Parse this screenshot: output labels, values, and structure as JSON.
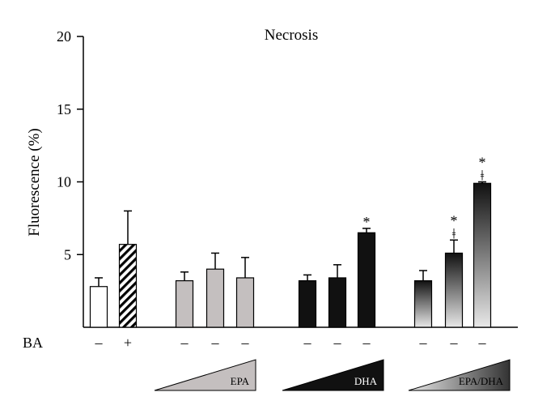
{
  "chart_data": {
    "type": "bar",
    "title": "Necrosis",
    "ylabel": "Fluorescence (%)",
    "xlabel": "",
    "ylim": [
      0,
      20
    ],
    "yticks": [
      "5",
      "10",
      "15",
      "20"
    ],
    "row_label": "BA",
    "bars": [
      {
        "value": 2.8,
        "error": 0.6,
        "ba": "–",
        "style": "white",
        "marks": []
      },
      {
        "value": 5.7,
        "error": 2.3,
        "ba": "+",
        "style": "hatched",
        "marks": []
      },
      {
        "value": 3.2,
        "error": 0.6,
        "ba": "–",
        "style": "gray",
        "marks": []
      },
      {
        "value": 4.0,
        "error": 1.1,
        "ba": "–",
        "style": "gray",
        "marks": []
      },
      {
        "value": 3.4,
        "error": 1.4,
        "ba": "–",
        "style": "gray",
        "marks": []
      },
      {
        "value": 3.2,
        "error": 0.4,
        "ba": "–",
        "style": "black",
        "marks": []
      },
      {
        "value": 3.4,
        "error": 0.9,
        "ba": "–",
        "style": "black",
        "marks": []
      },
      {
        "value": 6.5,
        "error": 0.3,
        "ba": "–",
        "style": "black",
        "marks": [
          "*"
        ]
      },
      {
        "value": 3.2,
        "error": 0.7,
        "ba": "–",
        "style": "gradient",
        "marks": []
      },
      {
        "value": 5.1,
        "error": 0.9,
        "ba": "–",
        "style": "gradient",
        "marks": [
          "*",
          "ǂ"
        ]
      },
      {
        "value": 9.9,
        "error": 0.1,
        "ba": "–",
        "style": "gradient",
        "marks": [
          "*",
          "ǂ"
        ]
      }
    ],
    "groups": [
      {
        "label": "EPA",
        "style": "gray"
      },
      {
        "label": "DHA",
        "style": "black"
      },
      {
        "label": "EPA/DHA",
        "style": "gradient"
      }
    ],
    "colors": {
      "gray": "#c4bfbf",
      "black": "#111111",
      "gradient_top": "#111111",
      "gradient_bottom": "#e8e8e8"
    }
  }
}
